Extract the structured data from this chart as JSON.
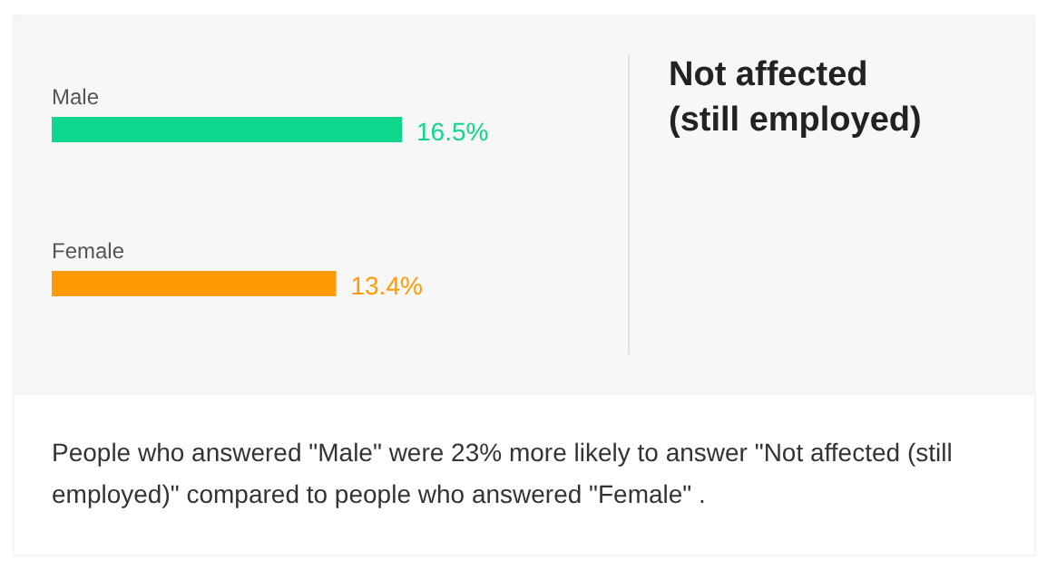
{
  "chart_data": {
    "type": "bar",
    "orientation": "horizontal",
    "title": "Not affected (still employed)",
    "categories": [
      "Male",
      "Female"
    ],
    "values": [
      16.5,
      13.4
    ],
    "colors": [
      "#0fd68d",
      "#ff9a05"
    ],
    "value_labels": [
      "16.5%",
      "13.4%"
    ],
    "annotations": [
      "People who answered \"Male\" were 23% more likely to answer \"Not affected (still employed)\" compared to people who answered \"Female\" ."
    ]
  }
}
